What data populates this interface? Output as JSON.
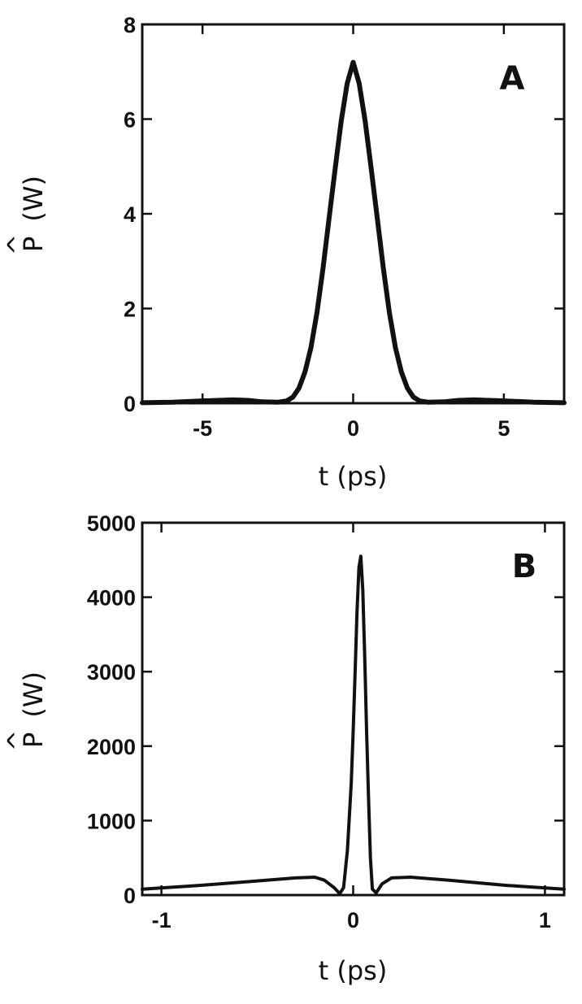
{
  "chart_data": [
    {
      "type": "line",
      "panel_label": "A",
      "xlabel": "t (ps)",
      "ylabel": "P (W)",
      "ylabel_symbol": "P",
      "ylabel_hat": "^",
      "ylabel_unit": "(W)",
      "xlim": [
        -7,
        7
      ],
      "ylim": [
        0,
        8
      ],
      "xticks": [
        -5,
        0,
        5
      ],
      "yticks": [
        0,
        2,
        4,
        6,
        8
      ],
      "grid": false,
      "series": [
        {
          "x": [
            -7,
            -6,
            -5,
            -4,
            -3.5,
            -3,
            -2.5,
            -2.2,
            -2,
            -1.8,
            -1.6,
            -1.4,
            -1.2,
            -1,
            -0.8,
            -0.6,
            -0.4,
            -0.2,
            0,
            0.2,
            0.4,
            0.6,
            0.8,
            1,
            1.2,
            1.4,
            1.6,
            1.8,
            2,
            2.2,
            2.5,
            3,
            3.5,
            4,
            5,
            6,
            7
          ],
          "y": [
            0.01,
            0.02,
            0.05,
            0.07,
            0.06,
            0.03,
            0.02,
            0.05,
            0.13,
            0.32,
            0.66,
            1.18,
            1.92,
            2.85,
            3.9,
            4.95,
            5.95,
            6.75,
            7.2,
            6.75,
            5.95,
            4.95,
            3.9,
            2.85,
            1.92,
            1.18,
            0.66,
            0.32,
            0.13,
            0.05,
            0.02,
            0.03,
            0.06,
            0.07,
            0.05,
            0.02,
            0.01
          ]
        }
      ]
    },
    {
      "type": "line",
      "panel_label": "B",
      "xlabel": "t (ps)",
      "ylabel": "P (W)",
      "ylabel_symbol": "P",
      "ylabel_hat": "^",
      "ylabel_unit": "(W)",
      "xlim": [
        -1.1,
        1.1
      ],
      "ylim": [
        0,
        5000
      ],
      "xticks": [
        -1,
        0,
        1
      ],
      "yticks": [
        0,
        1000,
        2000,
        3000,
        4000,
        5000
      ],
      "grid": false,
      "series": [
        {
          "x": [
            -1.1,
            -0.8,
            -0.5,
            -0.3,
            -0.2,
            -0.15,
            -0.1,
            -0.07,
            -0.05,
            -0.03,
            -0.01,
            0.0,
            0.01,
            0.02,
            0.03,
            0.04,
            0.05,
            0.06,
            0.07,
            0.08,
            0.09,
            0.1,
            0.12,
            0.15,
            0.2,
            0.3,
            0.5,
            0.8,
            1.1
          ],
          "y": [
            80,
            130,
            190,
            230,
            240,
            200,
            100,
            20,
            100,
            600,
            1500,
            2200,
            3000,
            3800,
            4400,
            4550,
            4100,
            3200,
            2200,
            1300,
            500,
            80,
            30,
            150,
            230,
            240,
            200,
            130,
            80
          ]
        }
      ]
    }
  ]
}
